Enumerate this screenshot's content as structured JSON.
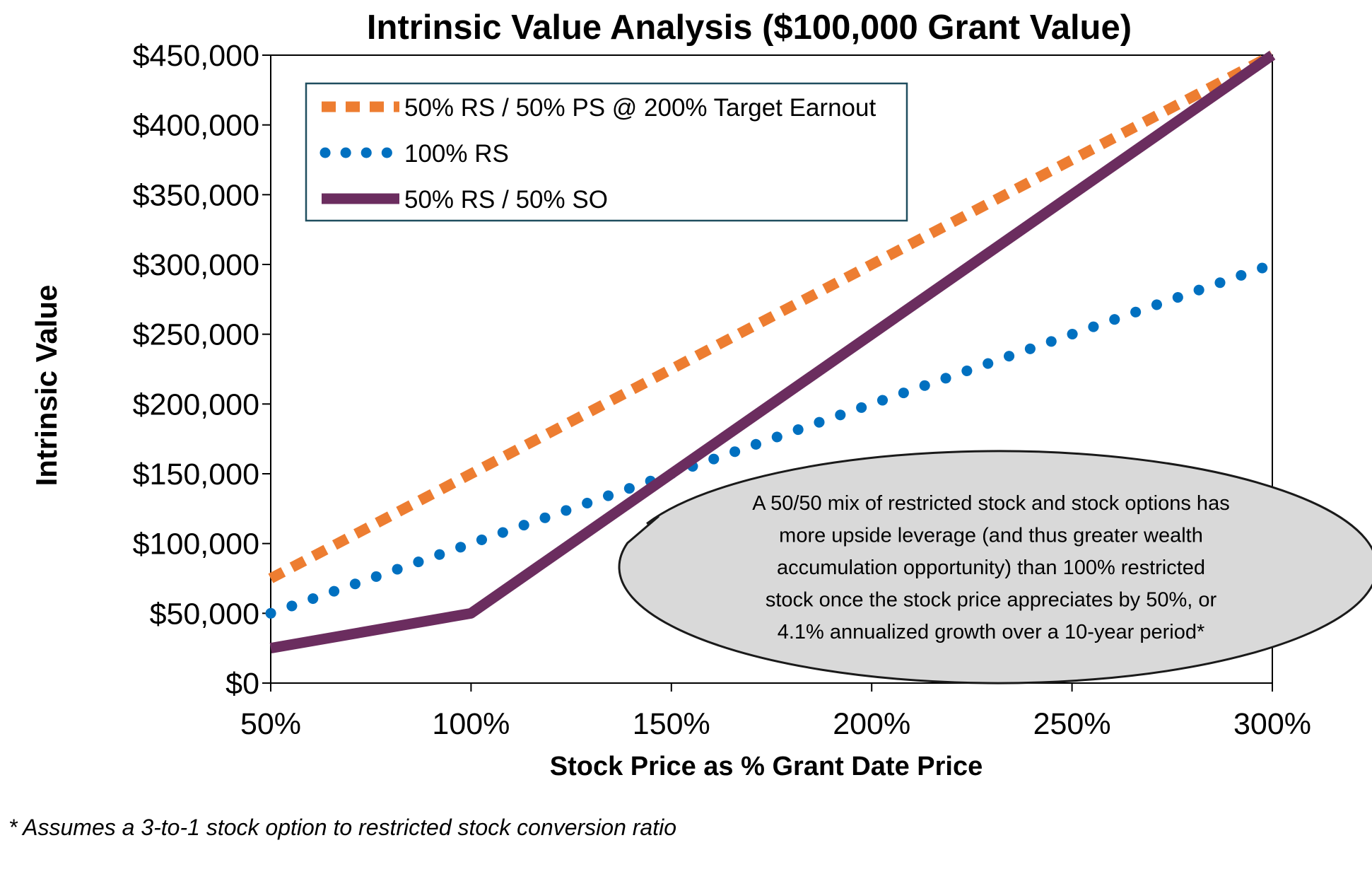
{
  "chart_data": {
    "type": "line",
    "title": "Intrinsic Value Analysis ($100,000 Grant Value)",
    "xlabel": "Stock Price as % Grant Date Price",
    "ylabel": "Intrinsic Value",
    "x": [
      50,
      100,
      150,
      200,
      250,
      300
    ],
    "xtick_labels": [
      "50%",
      "100%",
      "150%",
      "200%",
      "250%",
      "300%"
    ],
    "xlim": [
      50,
      300
    ],
    "ylim": [
      0,
      450000
    ],
    "yticks": [
      0,
      50000,
      100000,
      150000,
      200000,
      250000,
      300000,
      350000,
      400000,
      450000
    ],
    "ytick_labels": [
      "$0",
      "$50,000",
      "$100,000",
      "$150,000",
      "$200,000",
      "$250,000",
      "$300,000",
      "$350,000",
      "$400,000",
      "$450,000"
    ],
    "grid": false,
    "legend_position": "top-left",
    "series": [
      {
        "name": "50% RS / 50% PS @ 200% Target Earnout",
        "style": "dashed",
        "color": "#ED7D31",
        "values": [
          75000,
          150000,
          225000,
          300000,
          375000,
          450000
        ]
      },
      {
        "name": "100% RS",
        "style": "dotted",
        "color": "#0070C0",
        "values": [
          50000,
          100000,
          150000,
          200000,
          250000,
          300000
        ]
      },
      {
        "name": "50% RS / 50% SO",
        "style": "solid",
        "color": "#6B2D5F",
        "values": [
          25000,
          50000,
          150000,
          250000,
          350000,
          450000
        ]
      }
    ],
    "annotation": "A 50/50 mix of restricted stock and stock options has more upside leverage (and thus greater wealth accumulation opportunity) than 100% restricted stock once the stock price appreciates by 50%, or 4.1% annualized growth over a 10-year period*",
    "annotation_lines": [
      "A 50/50 mix of restricted stock and stock options has",
      "more upside leverage (and thus greater wealth",
      "accumulation opportunity) than 100% restricted",
      "stock once the stock price appreciates by 50%, or",
      "4.1% annualized growth over a 10-year period*"
    ]
  },
  "footnote": "* Assumes a 3-to-1 stock option to restricted stock conversion ratio"
}
